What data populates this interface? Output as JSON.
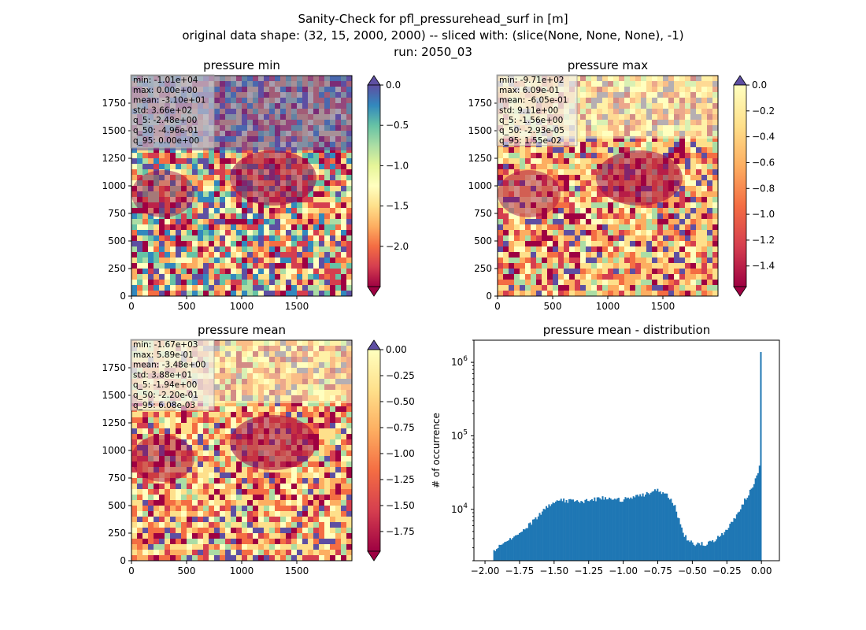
{
  "figure": {
    "title_lines": [
      "Sanity-Check for pfl_pressurehead_surf in [m]",
      "original data shape: (32, 15, 2000, 2000) -- sliced with: (slice(None, None, None), -1)",
      "run: 2050_03"
    ]
  },
  "chart_data": [
    {
      "type": "heatmap",
      "title": "pressure min",
      "x_ticks": [
        "0",
        "500",
        "1000",
        "1500"
      ],
      "y_ticks": [
        "0",
        "250",
        "500",
        "750",
        "1000",
        "1250",
        "1500",
        "1750"
      ],
      "xlim": [
        0,
        2000
      ],
      "ylim": [
        0,
        2000
      ],
      "colormap": "Spectral",
      "colorbar": {
        "vmin": -2.5,
        "vmax": 0.0,
        "ticks": [
          "0.0",
          "−0.5",
          "−1.0",
          "−1.5",
          "−2.0"
        ],
        "tick_values": [
          0.0,
          -0.5,
          -1.0,
          -1.5,
          -2.0
        ],
        "extend": "both"
      },
      "stats": [
        "min: -1.01e+04",
        "max: 0.00e+00",
        "mean: -3.10e+01",
        "std: 3.66e+02",
        "q_5: -2.48e+00",
        "q_50: -4.96e-01",
        "q_95: 0.00e+00"
      ]
    },
    {
      "type": "heatmap",
      "title": "pressure max",
      "x_ticks": [
        "0",
        "500",
        "1000",
        "1500"
      ],
      "y_ticks": [
        "0",
        "250",
        "500",
        "750",
        "1000",
        "1250",
        "1500",
        "1750"
      ],
      "xlim": [
        0,
        2000
      ],
      "ylim": [
        0,
        2000
      ],
      "colormap": "Spectral",
      "colorbar": {
        "vmin": -1.56,
        "vmax": 0.0,
        "ticks": [
          "0.0",
          "−0.2",
          "−0.4",
          "−0.6",
          "−0.8",
          "−1.0",
          "−1.2",
          "−1.4"
        ],
        "tick_values": [
          0.0,
          -0.2,
          -0.4,
          -0.6,
          -0.8,
          -1.0,
          -1.2,
          -1.4
        ],
        "extend": "both"
      },
      "stats": [
        "min: -9.71e+02",
        "max: 6.09e-01",
        "mean: -6.05e-01",
        "std: 9.11e+00",
        "q_5: -1.56e+00",
        "q_50: -2.93e-05",
        "q_95: 1.55e-02"
      ]
    },
    {
      "type": "heatmap",
      "title": "pressure mean",
      "x_ticks": [
        "0",
        "500",
        "1000",
        "1500"
      ],
      "y_ticks": [
        "0",
        "250",
        "500",
        "750",
        "1000",
        "1250",
        "1500",
        "1750"
      ],
      "xlim": [
        0,
        2000
      ],
      "ylim": [
        0,
        2000
      ],
      "colormap": "Spectral",
      "colorbar": {
        "vmin": -1.94,
        "vmax": 0.0,
        "ticks": [
          "0.00",
          "−0.25",
          "−0.50",
          "−0.75",
          "−1.00",
          "−1.25",
          "−1.50",
          "−1.75"
        ],
        "tick_values": [
          0.0,
          -0.25,
          -0.5,
          -0.75,
          -1.0,
          -1.25,
          -1.5,
          -1.75
        ],
        "extend": "both"
      },
      "stats": [
        "min: -1.67e+03",
        "max: 5.89e-01",
        "mean: -3.48e+00",
        "std: 3.88e+01",
        "q_5: -1.94e+00",
        "q_50: -2.20e-01",
        "q_95: 6.08e-03"
      ]
    },
    {
      "type": "bar",
      "title": "pressure mean - distribution",
      "ylabel": "# of occurrence",
      "yscale": "log",
      "xlim": [
        -2.08,
        0.13
      ],
      "ylim": [
        2000,
        2000000
      ],
      "x_ticks": [
        "−2.00",
        "−1.75",
        "−1.50",
        "−1.25",
        "−1.00",
        "−0.75",
        "−0.50",
        "−0.25",
        "0.00"
      ],
      "x_tick_values": [
        -2.0,
        -1.75,
        -1.5,
        -1.25,
        -1.0,
        -0.75,
        -0.5,
        -0.25,
        0.0
      ],
      "y_ticks": [
        "10^4",
        "10^5",
        "10^6"
      ],
      "y_tick_values": [
        10000,
        100000,
        1000000
      ],
      "bar_color": "#1f77b4",
      "bin_range": [
        -1.94,
        0.0
      ],
      "profile": [
        [
          -1.94,
          2700
        ],
        [
          -1.9,
          3100
        ],
        [
          -1.85,
          3600
        ],
        [
          -1.8,
          4200
        ],
        [
          -1.75,
          4800
        ],
        [
          -1.7,
          5700
        ],
        [
          -1.65,
          7000
        ],
        [
          -1.6,
          8800
        ],
        [
          -1.55,
          11000
        ],
        [
          -1.5,
          12500
        ],
        [
          -1.45,
          13500
        ],
        [
          -1.4,
          13000
        ],
        [
          -1.35,
          13000
        ],
        [
          -1.3,
          12800
        ],
        [
          -1.25,
          13200
        ],
        [
          -1.2,
          13800
        ],
        [
          -1.15,
          14500
        ],
        [
          -1.1,
          13800
        ],
        [
          -1.05,
          13500
        ],
        [
          -1.0,
          13600
        ],
        [
          -0.95,
          14200
        ],
        [
          -0.9,
          15000
        ],
        [
          -0.85,
          15800
        ],
        [
          -0.8,
          17500
        ],
        [
          -0.75,
          18000
        ],
        [
          -0.7,
          16500
        ],
        [
          -0.67,
          15000
        ],
        [
          -0.63,
          11500
        ],
        [
          -0.6,
          7500
        ],
        [
          -0.57,
          4800
        ],
        [
          -0.53,
          3800
        ],
        [
          -0.5,
          3450
        ],
        [
          -0.45,
          3350
        ],
        [
          -0.4,
          3400
        ],
        [
          -0.35,
          3700
        ],
        [
          -0.3,
          4300
        ],
        [
          -0.25,
          5400
        ],
        [
          -0.2,
          7200
        ],
        [
          -0.15,
          10500
        ],
        [
          -0.1,
          15500
        ],
        [
          -0.05,
          23000
        ],
        [
          -0.02,
          33000
        ],
        [
          -0.01,
          48000
        ],
        [
          0.0,
          1380000
        ]
      ]
    }
  ]
}
